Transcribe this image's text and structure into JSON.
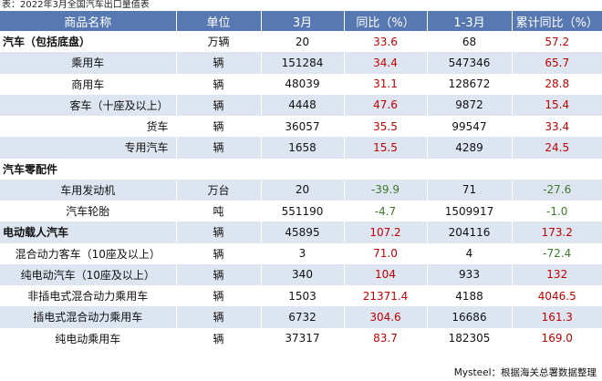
{
  "caption": "表：2022年3月全国汽车出口量值表",
  "columns": [
    "商品名称",
    "单位",
    "3月",
    "同比（%）",
    "1-3月",
    "累计同比（%）"
  ],
  "rows": [
    {
      "name": "汽车（包括底盘）",
      "unit": "万辆",
      "march": "20",
      "yoy": "33.6",
      "q1": "68",
      "cum_yoy": "57.2",
      "style": "bold"
    },
    {
      "name": "乘用车",
      "unit": "辆",
      "march": "151284",
      "yoy": "34.4",
      "q1": "547346",
      "cum_yoy": "65.7",
      "style": "center"
    },
    {
      "name": "商用车",
      "unit": "辆",
      "march": "48039",
      "yoy": "31.1",
      "q1": "128672",
      "cum_yoy": "28.8",
      "style": "center"
    },
    {
      "name": "客车（十座及以上）",
      "unit": "辆",
      "march": "4448",
      "yoy": "47.6",
      "q1": "9872",
      "cum_yoy": "15.4",
      "style": "right"
    },
    {
      "name": "货车",
      "unit": "辆",
      "march": "36057",
      "yoy": "35.5",
      "q1": "99547",
      "cum_yoy": "33.4",
      "style": "right"
    },
    {
      "name": "专用汽车",
      "unit": "辆",
      "march": "1658",
      "yoy": "15.5",
      "q1": "4289",
      "cum_yoy": "24.5",
      "style": "right"
    },
    {
      "name": "汽车零配件",
      "unit": "",
      "march": "",
      "yoy": "",
      "q1": "",
      "cum_yoy": "",
      "style": "bold"
    },
    {
      "name": "车用发动机",
      "unit": "万台",
      "march": "20",
      "yoy": "-39.9",
      "q1": "71",
      "cum_yoy": "-27.6",
      "style": "center"
    },
    {
      "name": "汽车轮胎",
      "unit": "吨",
      "march": "551190",
      "yoy": "-4.7",
      "q1": "1509917",
      "cum_yoy": "-1.0",
      "style": "center"
    },
    {
      "name": "电动载人汽车",
      "unit": "辆",
      "march": "45895",
      "yoy": "107.2",
      "q1": "204116",
      "cum_yoy": "173.2",
      "style": "bold"
    },
    {
      "name": "混合动力客车（10座及以上）",
      "unit": "辆",
      "march": "3",
      "yoy": "71.0",
      "q1": "4",
      "cum_yoy": "-72.4",
      "style": "center"
    },
    {
      "name": "纯电动汽车（10座及以上）",
      "unit": "辆",
      "march": "340",
      "yoy": "104",
      "q1": "933",
      "cum_yoy": "132",
      "style": "center"
    },
    {
      "name": "非插电式混合动力乘用车",
      "unit": "辆",
      "march": "1503",
      "yoy": "21371.4",
      "q1": "4188",
      "cum_yoy": "4046.5",
      "style": "center"
    },
    {
      "name": "插电式混合动力乘用车",
      "unit": "辆",
      "march": "6732",
      "yoy": "304.6",
      "q1": "16686",
      "cum_yoy": "161.3",
      "style": "center"
    },
    {
      "name": "纯电动乘用车",
      "unit": "辆",
      "march": "37317",
      "yoy": "83.7",
      "q1": "182305",
      "cum_yoy": "169.0",
      "style": "center"
    }
  ],
  "footer": "Mysteel：根据海关总署数据整理",
  "colors": {
    "header_bg": "#5778b0",
    "stripe": "#dde5f1",
    "positive": "#c00000",
    "negative": "#3d7a2c"
  }
}
